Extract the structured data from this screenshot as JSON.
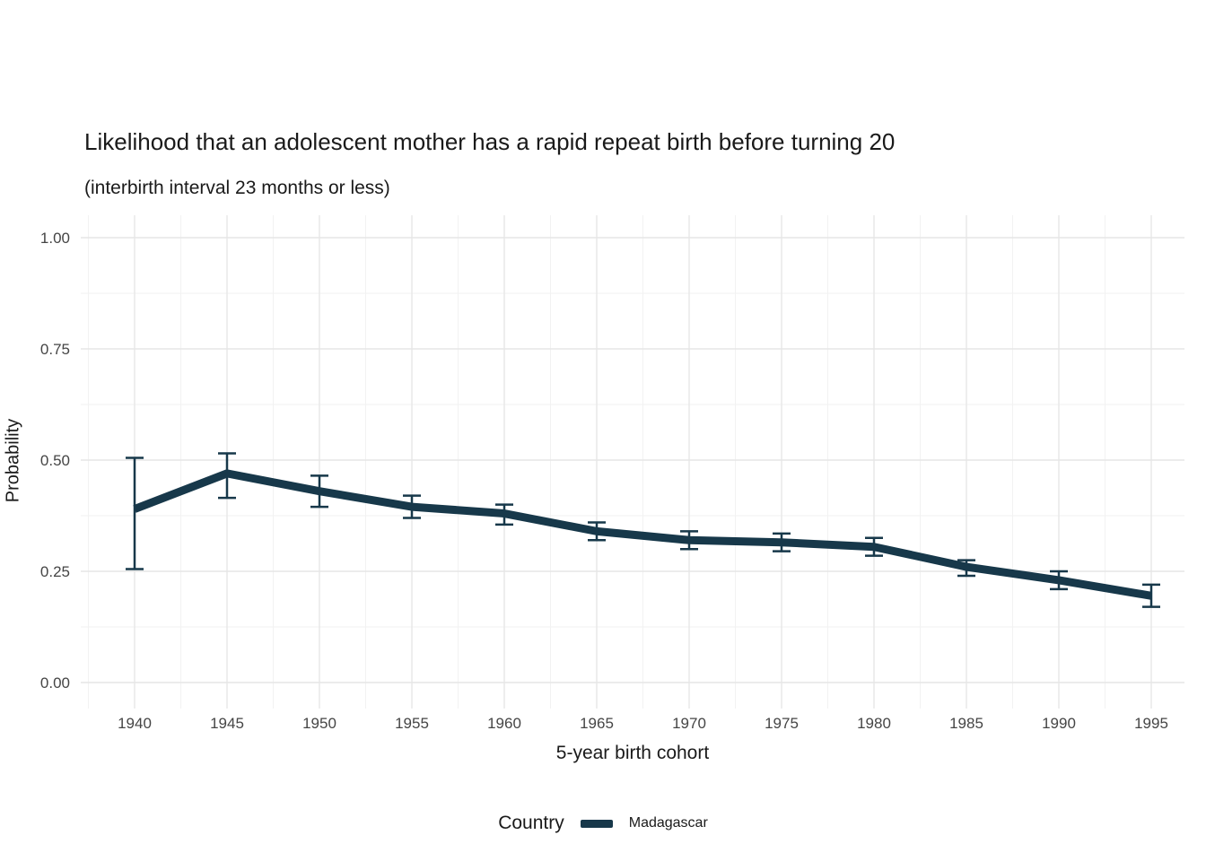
{
  "chart_data": {
    "type": "line",
    "title": "Likelihood that an adolescent mother has a rapid repeat birth before turning 20",
    "subtitle": "(interbirth interval 23 months or less)",
    "xlabel": "5-year birth cohort",
    "ylabel": "Probability",
    "x": [
      1940,
      1945,
      1950,
      1955,
      1960,
      1965,
      1970,
      1975,
      1980,
      1985,
      1990,
      1995
    ],
    "x_tick_labels": [
      "1940",
      "1945",
      "1950",
      "1955",
      "1960",
      "1965",
      "1970",
      "1975",
      "1980",
      "1985",
      "1990",
      "1995"
    ],
    "y_ticks": [
      0,
      0.25,
      0.5,
      0.75,
      1
    ],
    "y_tick_labels": [
      "0.00",
      "0.25",
      "0.50",
      "0.75",
      "1.00"
    ],
    "ylim": [
      0,
      1
    ],
    "grid": true,
    "series": [
      {
        "name": "Madagascar",
        "color": "#17384a",
        "values": [
          0.39,
          0.47,
          0.43,
          0.395,
          0.38,
          0.34,
          0.32,
          0.315,
          0.305,
          0.26,
          0.23,
          0.195
        ],
        "ci_low": [
          0.255,
          0.415,
          0.395,
          0.37,
          0.355,
          0.32,
          0.3,
          0.295,
          0.285,
          0.24,
          0.21,
          0.17
        ],
        "ci_high": [
          0.505,
          0.515,
          0.465,
          0.42,
          0.4,
          0.36,
          0.34,
          0.335,
          0.325,
          0.275,
          0.25,
          0.22
        ]
      }
    ],
    "legend": {
      "title": "Country",
      "position": "bottom"
    }
  },
  "style": {
    "grid_major_color": "#e6e6e6",
    "grid_minor_color": "#f2f2f2",
    "tick_label_color": "#454545"
  }
}
